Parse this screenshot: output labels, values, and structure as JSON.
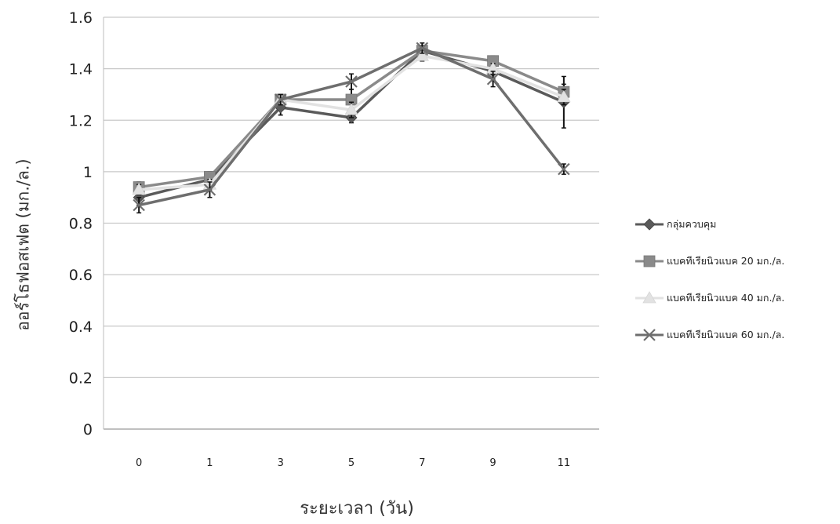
{
  "chart_data": {
    "type": "line",
    "categories": [
      "0",
      "1",
      "3",
      "5",
      "7",
      "9",
      "11"
    ],
    "ylabel": "ออร์โธฟอสเฟต (มก./ล.)",
    "xlabel": "ระยะเวลา (วัน)",
    "ylim": [
      0,
      1.6
    ],
    "yticks": [
      "0",
      "0.2",
      "0.4",
      "0.6",
      "0.8",
      "1",
      "1.2",
      "1.4",
      "1.6"
    ],
    "grid": true,
    "legend_position": "right",
    "series": [
      {
        "name": "กลุ่มควบคุม",
        "values": [
          0.9,
          0.97,
          1.25,
          1.21,
          1.47,
          1.39,
          1.27
        ],
        "marker": "diamond",
        "color": "#5a5a5a",
        "err": [
          0.03,
          0.03,
          0.03,
          0.02,
          0.02,
          0.03,
          0.1
        ]
      },
      {
        "name": "แบคทีเรียนิวแบค 20 มก./ล.",
        "values": [
          0.94,
          0.98,
          1.28,
          1.28,
          1.47,
          1.43,
          1.31
        ],
        "marker": "square",
        "color": "#8a8a8a",
        "err": [
          0.02,
          0.02,
          0.02,
          0.04,
          0.02,
          0.02,
          0.03
        ]
      },
      {
        "name": "แบคทีเรียนิวแบค 40 มก./ล.",
        "values": [
          0.93,
          0.95,
          1.28,
          1.24,
          1.45,
          1.4,
          1.29
        ],
        "marker": "triangle",
        "color": "#e2e2e2",
        "err": [
          0.02,
          0.02,
          0.02,
          0.03,
          0.02,
          0.02,
          0.03
        ]
      },
      {
        "name": "แบคทีเรียนิวแบค 60 มก./ล.",
        "values": [
          0.87,
          0.93,
          1.28,
          1.35,
          1.48,
          1.36,
          1.01
        ],
        "marker": "x",
        "color": "#6e6e6e",
        "err": [
          0.03,
          0.03,
          0.02,
          0.03,
          0.02,
          0.03,
          0.02
        ]
      }
    ]
  }
}
